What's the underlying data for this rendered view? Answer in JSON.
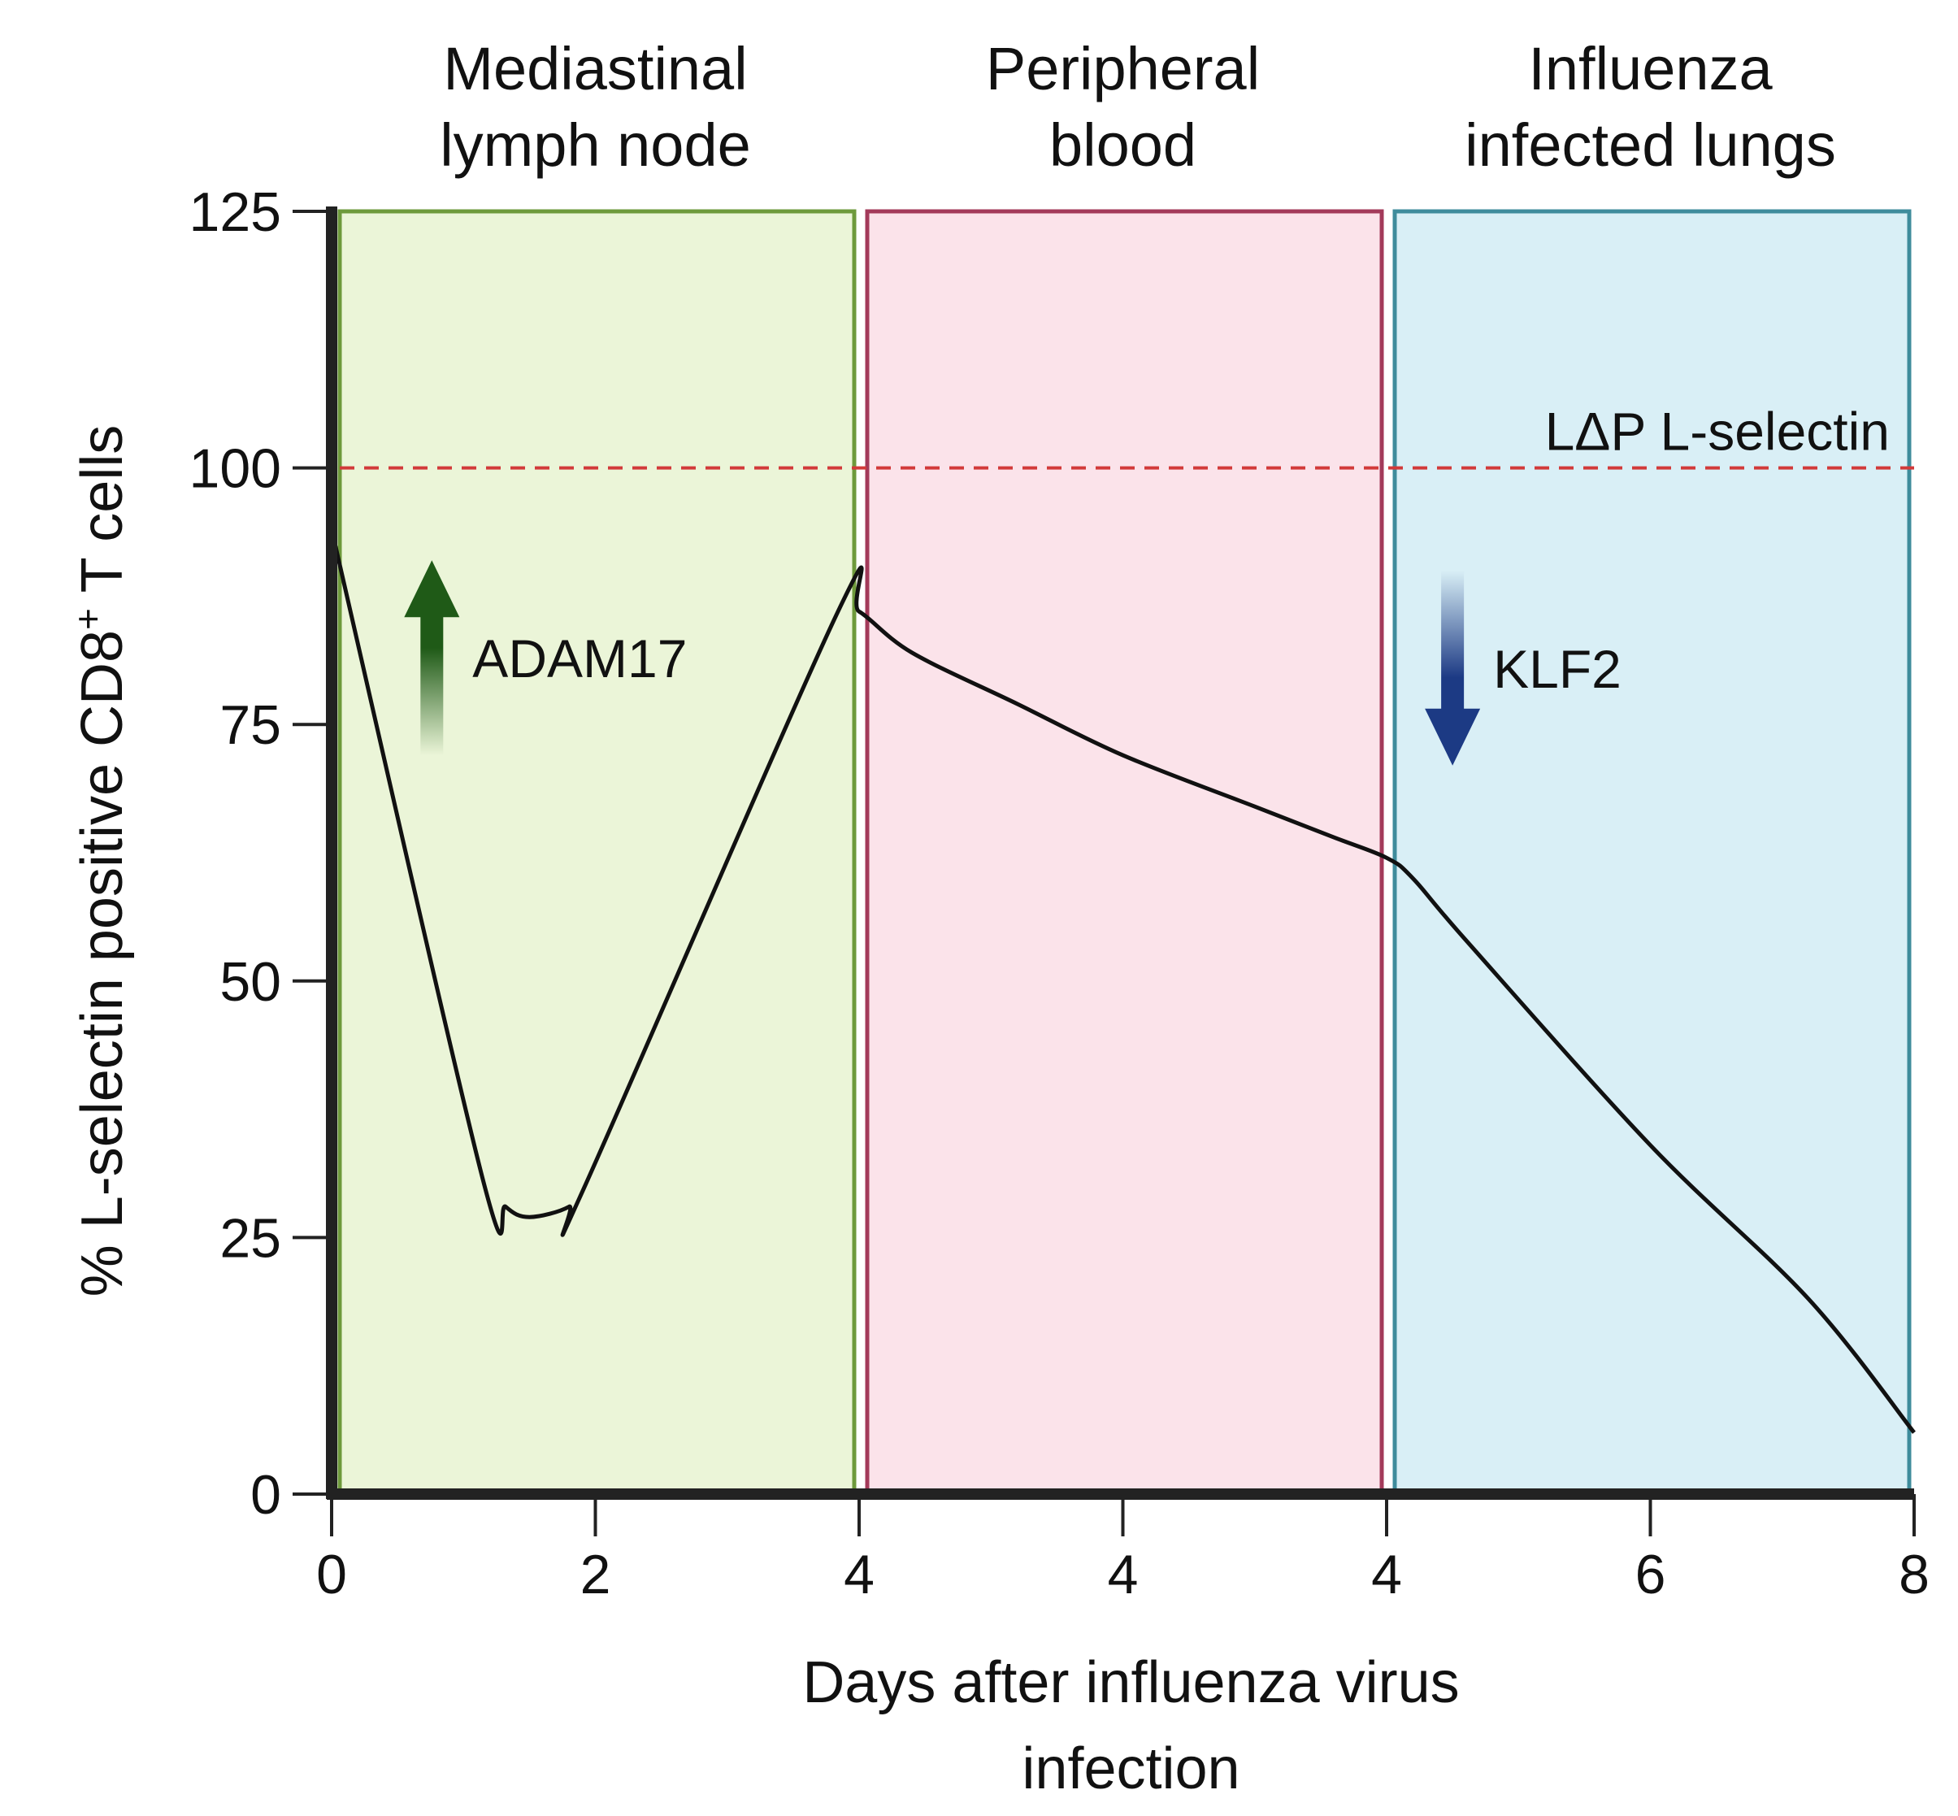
{
  "chart_data": {
    "type": "line",
    "xlabel_lines": [
      "Days after influenza virus",
      "infection"
    ],
    "ylabel_parts": {
      "main": "% L-selectin positive  CD8",
      "sup": "+",
      "rest": " T cells"
    },
    "ylim": [
      0,
      125
    ],
    "y_ticks": [
      0,
      25,
      50,
      75,
      100,
      125
    ],
    "x_ticks": [
      {
        "label": "0",
        "pos": 0
      },
      {
        "label": "2",
        "pos": 1
      },
      {
        "label": "4",
        "pos": 2
      },
      {
        "label": "4",
        "pos": 3
      },
      {
        "label": "4",
        "pos": 4
      },
      {
        "label": "6",
        "pos": 5
      },
      {
        "label": "8",
        "pos": 6
      }
    ],
    "x_range": [
      0,
      6
    ],
    "regions": [
      {
        "label_lines": [
          "Mediastinal",
          "lymph node"
        ],
        "start": 0,
        "end": 2,
        "fill": "#ebf5d8",
        "stroke": "#6e9a3c"
      },
      {
        "label_lines": [
          "Peripheral",
          "blood"
        ],
        "start": 2,
        "end": 4,
        "fill": "#fbe3ea",
        "stroke": "#a33a5a"
      },
      {
        "label_lines": [
          "Influenza",
          "infected lungs"
        ],
        "start": 4,
        "end": 6,
        "fill": "#d9eff6",
        "stroke": "#3f8c9c"
      }
    ],
    "reference_line": {
      "label": "LΔP L-selectin",
      "value": 100,
      "color": "#d23a3a"
    },
    "series": [
      {
        "color": "#111111",
        "points": [
          [
            0.0,
            94
          ],
          [
            0.57,
            31
          ],
          [
            0.66,
            28
          ],
          [
            0.75,
            27
          ],
          [
            0.9,
            28
          ],
          [
            0.96,
            30
          ],
          [
            1.92,
            86
          ],
          [
            2.0,
            86
          ],
          [
            2.2,
            82
          ],
          [
            2.6,
            77
          ],
          [
            3.0,
            72
          ],
          [
            3.5,
            67
          ],
          [
            3.8,
            64
          ],
          [
            4.0,
            62
          ],
          [
            4.1,
            60
          ],
          [
            4.3,
            54
          ],
          [
            5.0,
            34
          ],
          [
            5.6,
            19
          ],
          [
            6.0,
            6
          ]
        ]
      }
    ],
    "annotations": [
      {
        "text": "ADAM17",
        "direction": "up",
        "color": "#1f5a17",
        "x": 0.38,
        "y_start": 72,
        "y_end": 91
      },
      {
        "text": "KLF2",
        "direction": "down",
        "color": "#1c3a84",
        "x": 4.25,
        "y_start": 90,
        "y_end": 71
      }
    ]
  }
}
